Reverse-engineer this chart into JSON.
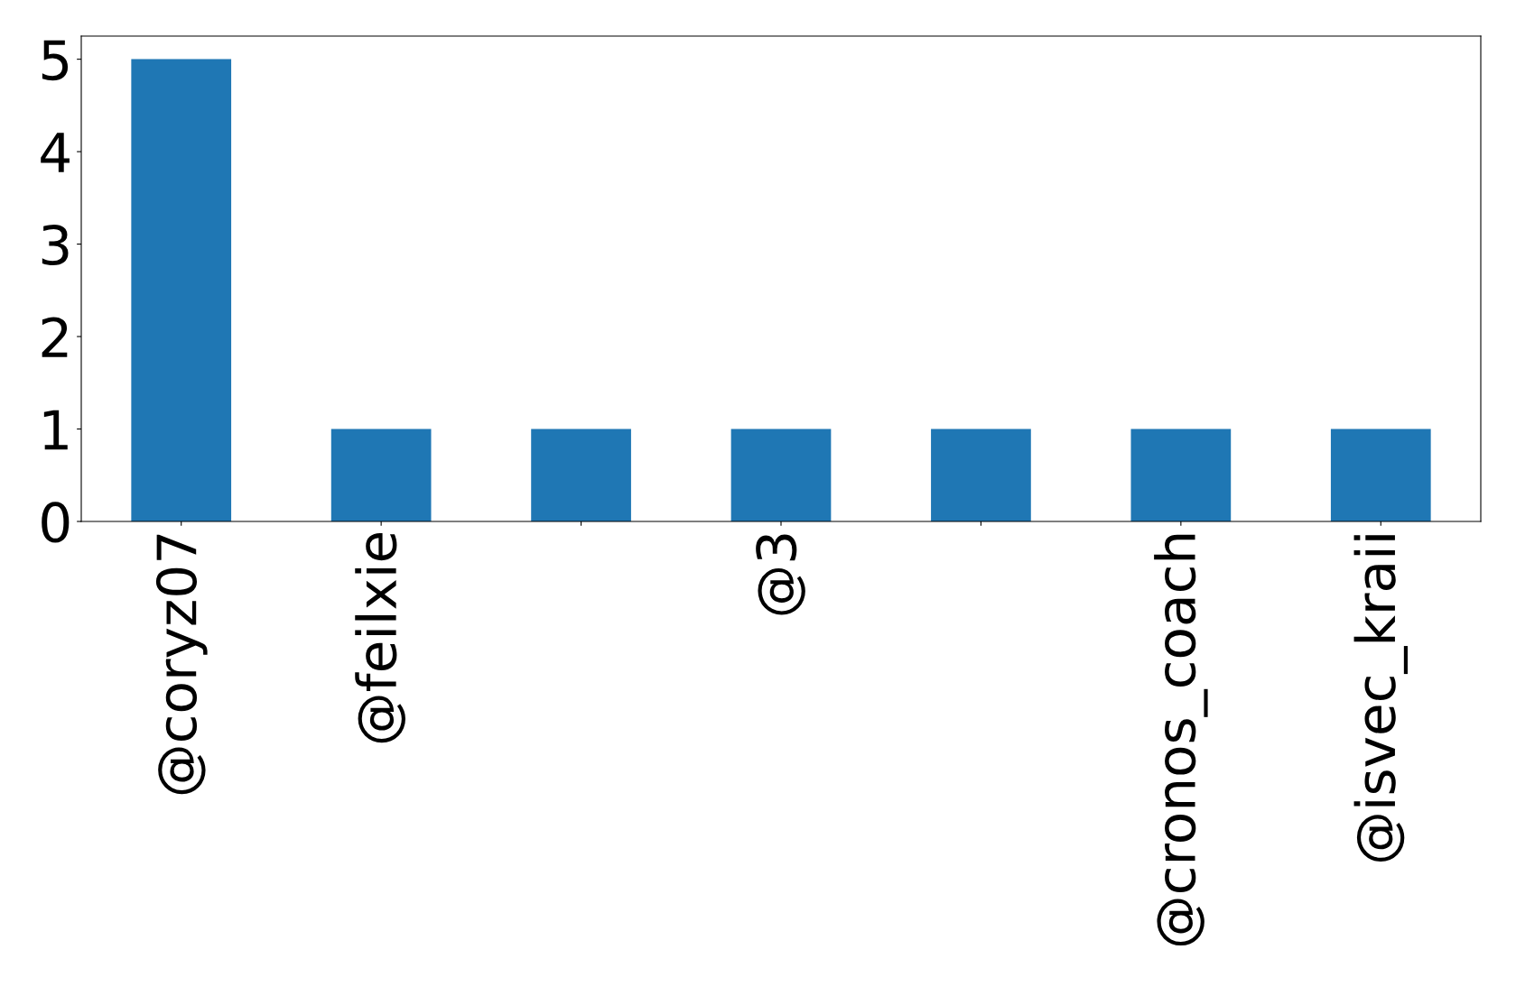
{
  "chart_data": {
    "type": "bar",
    "categories": [
      "@coryz07",
      "@feilxie",
      null,
      "@3",
      null,
      "@cronos_coach",
      "@isvec_kraii"
    ],
    "values": [
      5,
      1,
      1,
      1,
      1,
      1,
      1
    ],
    "color": "#1f77b4",
    "ylim": [
      0,
      5.25
    ],
    "yticks": [
      0,
      1,
      2,
      3,
      4,
      5
    ],
    "grid": false
  }
}
